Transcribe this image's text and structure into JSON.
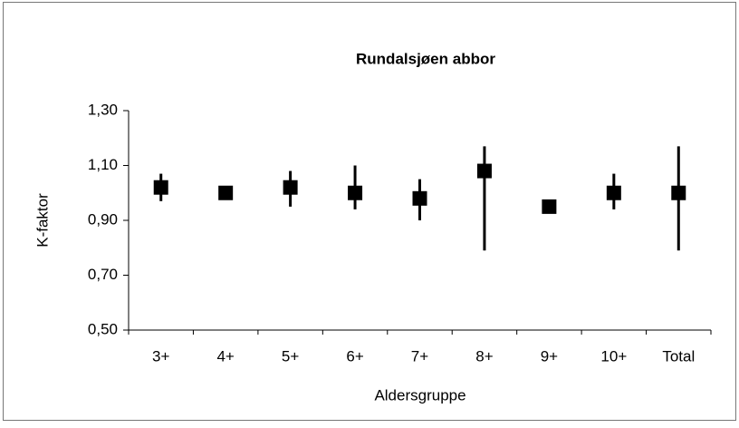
{
  "chart_data": {
    "type": "errorbar",
    "title": "Rundalsjøen abbor",
    "x_label": "Aldersgruppe",
    "y_label": "K-faktor",
    "categories": [
      "3+",
      "4+",
      "5+",
      "6+",
      "7+",
      "8+",
      "9+",
      "10+",
      "Total"
    ],
    "values": [
      1.02,
      1.0,
      1.02,
      1.0,
      0.98,
      1.08,
      0.95,
      1.0,
      1.0
    ],
    "low": [
      0.97,
      null,
      0.95,
      0.94,
      0.9,
      0.79,
      null,
      0.94,
      0.79
    ],
    "high": [
      1.07,
      null,
      1.08,
      1.1,
      1.05,
      1.17,
      null,
      1.07,
      1.17
    ],
    "color": "#000000",
    "ylim": [
      0.5,
      1.3
    ],
    "yticks": [
      {
        "value": 0.5,
        "label": "0,50"
      },
      {
        "value": 0.7,
        "label": "0,70"
      },
      {
        "value": 0.9,
        "label": "0,90"
      },
      {
        "value": 1.1,
        "label": "1,10"
      },
      {
        "value": 1.3,
        "label": "1,30"
      }
    ]
  }
}
